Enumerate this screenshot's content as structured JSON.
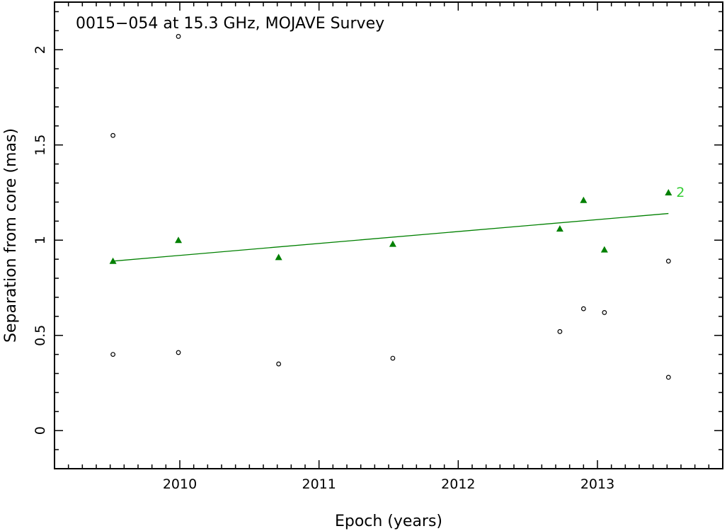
{
  "chart_data": {
    "type": "scatter",
    "title": "0015−054 at 15.3 GHz, MOJAVE Survey",
    "xlabel": "Epoch (years)",
    "ylabel": "Separation from core (mas)",
    "xlim": [
      2009.1,
      2013.9
    ],
    "ylim": [
      -0.2,
      2.25
    ],
    "x_ticks": [
      2010,
      2011,
      2012,
      2013
    ],
    "y_ticks": [
      0,
      0.5,
      1,
      1.5,
      2
    ],
    "series": [
      {
        "marker": "open-circle",
        "color": "#000000",
        "x": [
          2009.52,
          2009.52,
          2009.99,
          2009.99,
          2010.71,
          2011.53,
          2012.73,
          2012.9,
          2013.05,
          2013.51,
          2013.51
        ],
        "y": [
          1.55,
          0.4,
          2.07,
          0.41,
          0.35,
          0.38,
          0.52,
          0.64,
          0.62,
          0.89,
          0.28
        ]
      },
      {
        "name": "2",
        "marker": "filled-triangle",
        "color": "#008000",
        "x": [
          2009.52,
          2009.99,
          2010.71,
          2011.53,
          2012.73,
          2012.9,
          2013.05,
          2013.51
        ],
        "y": [
          0.89,
          1.0,
          0.91,
          0.98,
          1.06,
          1.21,
          0.95,
          1.25
        ],
        "fit": {
          "x": [
            2009.52,
            2013.51
          ],
          "y": [
            0.89,
            1.14
          ]
        }
      }
    ],
    "grid": false,
    "legend": "none"
  },
  "colors": {
    "fit_line": "#008000",
    "component_label": "#33cc33",
    "frame": "#000000"
  }
}
